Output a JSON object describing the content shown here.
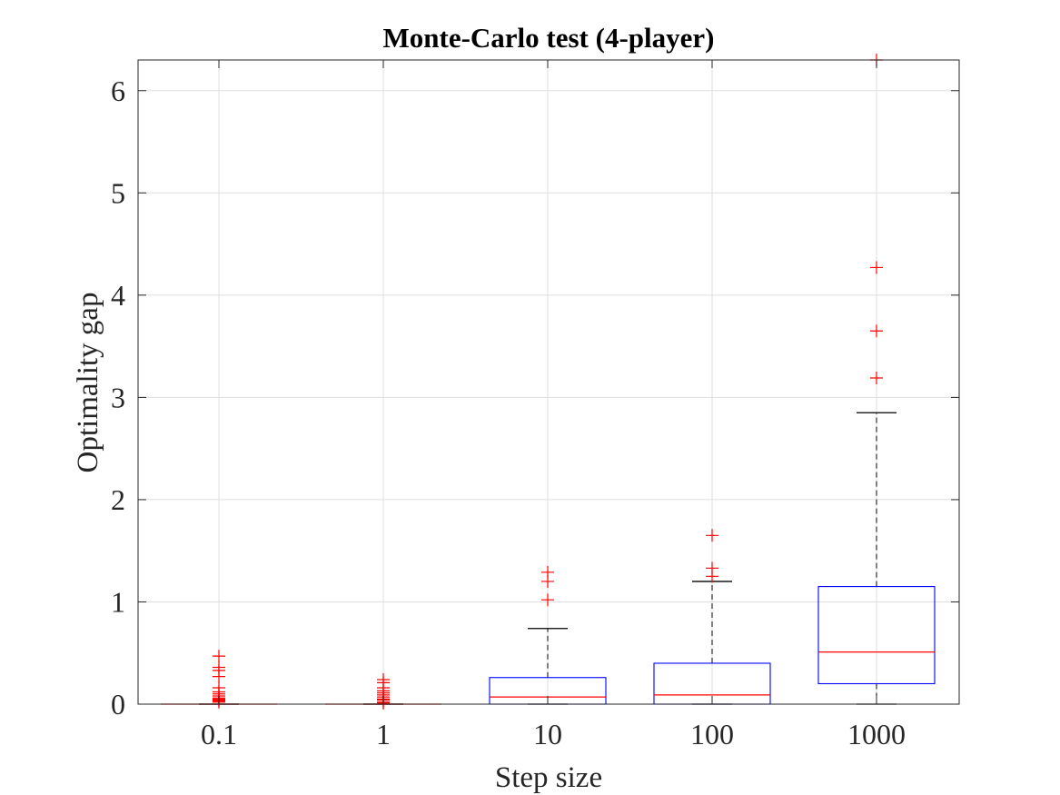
{
  "chart_data": {
    "type": "box",
    "title": "Monte-Carlo test (4-player)",
    "xlabel": "Step size",
    "ylabel": "Optimality gap",
    "categories": [
      "0.1",
      "1",
      "10",
      "100",
      "1000"
    ],
    "ylim": [
      0,
      6.3
    ],
    "yticks": [
      0,
      1,
      2,
      3,
      4,
      5,
      6
    ],
    "grid": true,
    "boxes": [
      {
        "category": "0.1",
        "min": 0,
        "q1": 0,
        "median": 0,
        "q3": 0,
        "max": 0,
        "outliers": [
          0.02,
          0.03,
          0.04,
          0.05,
          0.06,
          0.08,
          0.1,
          0.12,
          0.16,
          0.27,
          0.33,
          0.36,
          0.47
        ]
      },
      {
        "category": "1",
        "min": 0,
        "q1": 0,
        "median": 0,
        "q3": 0,
        "max": 0,
        "outliers": [
          0.01,
          0.02,
          0.04,
          0.05,
          0.07,
          0.09,
          0.11,
          0.13,
          0.16,
          0.21,
          0.24
        ]
      },
      {
        "category": "10",
        "min": 0,
        "q1": 0,
        "median": 0.07,
        "q3": 0.26,
        "max": 0.74,
        "outliers": [
          1.02,
          1.2,
          1.29
        ]
      },
      {
        "category": "100",
        "min": 0,
        "q1": 0,
        "median": 0.09,
        "q3": 0.4,
        "max": 1.2,
        "outliers": [
          1.25,
          1.33,
          1.65
        ]
      },
      {
        "category": "1000",
        "min": 0,
        "q1": 0.2,
        "median": 0.51,
        "q3": 1.15,
        "max": 2.85,
        "outliers": [
          3.19,
          3.65,
          4.27,
          6.3
        ]
      }
    ],
    "colors": {
      "box": "#0000ff",
      "median": "#ff0000",
      "whisker": "#000000",
      "outlier": "#ff0000",
      "grid": "#dfdfdf"
    }
  }
}
